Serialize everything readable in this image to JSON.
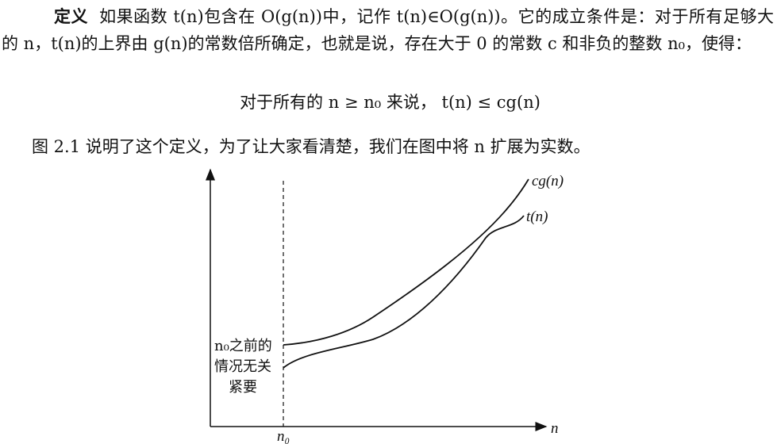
{
  "definition": {
    "label": "定义",
    "text": "如果函数 t(n)包含在 O(g(n))中，记作 t(n)∈O(g(n))。它的成立条件是：对于所有足够大的 n，t(n)的上界由 g(n)的常数倍所确定，也就是说，存在大于 0 的常数 c 和非负的整数 n₀，使得："
  },
  "formula": "对于所有的 n ≥ n₀ 来说，  t(n) ≤ cg(n)",
  "explanation": "图 2.1 说明了这个定义，为了让大家看清楚，我们在图中将 n 扩展为实数。",
  "figure": {
    "upper_curve_label": "cg(n)",
    "lower_curve_label": "t(n)",
    "x_axis_label": "n",
    "threshold_label": "n₀",
    "note_lines": [
      "n₀之前的",
      "情况无关",
      "紧要"
    ]
  }
}
